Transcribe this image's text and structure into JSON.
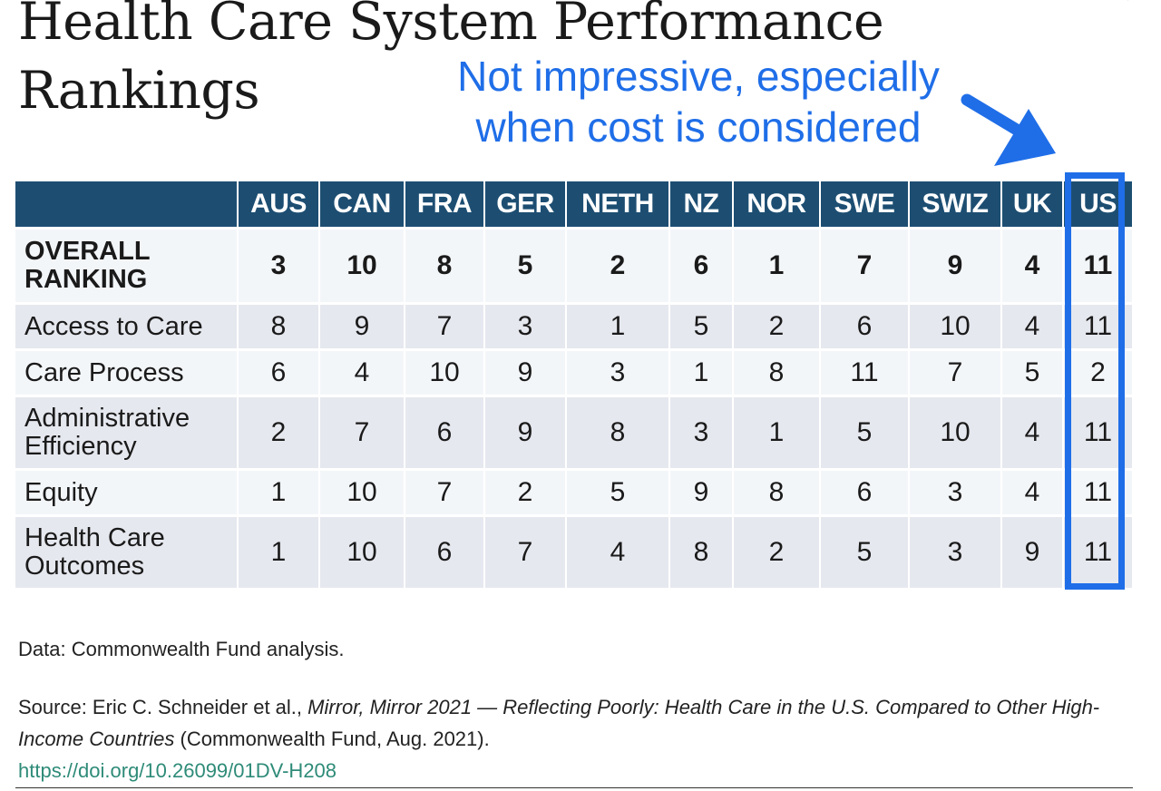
{
  "title": {
    "line1": "Health Care System Performance",
    "line2": "Rankings"
  },
  "annotation": {
    "line1": "Not impressive, especially",
    "line2": "when cost is considered",
    "color": "#1f6ee8"
  },
  "chart_data": {
    "type": "table",
    "title": "Health Care System Performance Rankings",
    "columns": [
      "AUS",
      "CAN",
      "FRA",
      "GER",
      "NETH",
      "NZ",
      "NOR",
      "SWE",
      "SWIZ",
      "UK",
      "US"
    ],
    "rows": [
      {
        "label_line1": "OVERALL",
        "label_line2": "RANKING",
        "values": [
          3,
          10,
          8,
          5,
          2,
          6,
          1,
          7,
          9,
          4,
          11
        ]
      },
      {
        "label_line1": "Access to Care",
        "label_line2": "",
        "values": [
          8,
          9,
          7,
          3,
          1,
          5,
          2,
          6,
          10,
          4,
          11
        ]
      },
      {
        "label_line1": "Care Process",
        "label_line2": "",
        "values": [
          6,
          4,
          10,
          9,
          3,
          1,
          8,
          11,
          7,
          5,
          2
        ]
      },
      {
        "label_line1": "Administrative",
        "label_line2": "Efficiency",
        "values": [
          2,
          7,
          6,
          9,
          8,
          3,
          1,
          5,
          10,
          4,
          11
        ]
      },
      {
        "label_line1": "Equity",
        "label_line2": "",
        "values": [
          1,
          10,
          7,
          2,
          5,
          9,
          8,
          6,
          3,
          4,
          11
        ]
      },
      {
        "label_line1": "Health Care",
        "label_line2": "Outcomes",
        "values": [
          1,
          10,
          6,
          7,
          4,
          8,
          2,
          5,
          3,
          9,
          11
        ]
      }
    ],
    "highlighted_column": "US",
    "header_color": "#1d4e72",
    "row_colors": [
      "#f3f6f9",
      "#e6e8ef"
    ]
  },
  "footnotes": {
    "data_note": "Data: Commonwealth Fund analysis.",
    "source_prefix": "Source: Eric C. Schneider et al., ",
    "source_title": "Mirror, Mirror 2021 — Reflecting Poorly: Health Care in the U.S. Compared to Other High-Income Countries",
    "source_suffix": " (Commonwealth Fund, Aug. 2021).",
    "link": "https://doi.org/10.26099/01DV-H208",
    "link_color": "#2e8b78"
  }
}
